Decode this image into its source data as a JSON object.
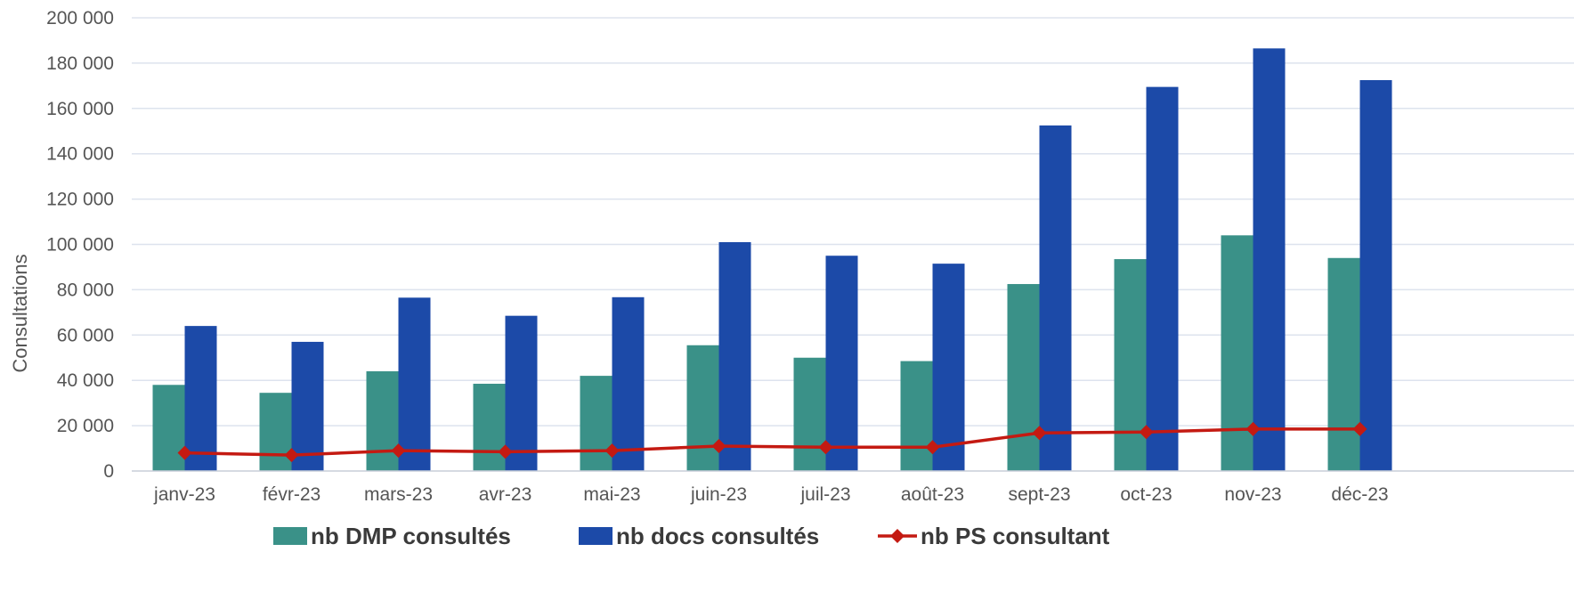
{
  "chart_data": {
    "type": "bar",
    "title": "",
    "xlabel": "",
    "ylabel": "Consultations",
    "ylim": [
      0,
      200000
    ],
    "yticks": [
      0,
      20000,
      40000,
      60000,
      80000,
      100000,
      120000,
      140000,
      160000,
      180000,
      200000
    ],
    "ytick_labels": [
      "0",
      "20 000",
      "40 000",
      "60 000",
      "80 000",
      "100 000",
      "120 000",
      "140 000",
      "160 000",
      "180 000",
      "200 000"
    ],
    "grid": true,
    "legend_position": "bottom",
    "categories": [
      "janv-23",
      "févr-23",
      "mars-23",
      "avr-23",
      "mai-23",
      "juin-23",
      "juil-23",
      "août-23",
      "sept-23",
      "oct-23",
      "nov-23",
      "déc-23"
    ],
    "series": [
      {
        "name": "nb DMP consultés",
        "type": "bar",
        "color": "#3a9188",
        "values": [
          38000,
          34500,
          44000,
          38500,
          42000,
          55500,
          50000,
          48500,
          82500,
          93500,
          104000,
          94000
        ]
      },
      {
        "name": "nb docs consultés",
        "type": "bar",
        "color": "#1c4aa8",
        "values": [
          64000,
          57000,
          76500,
          68500,
          76700,
          101000,
          95000,
          91500,
          152500,
          169500,
          186500,
          172500
        ]
      },
      {
        "name": "nb PS consultant",
        "type": "line",
        "color": "#c41a12",
        "values": [
          8000,
          7000,
          9000,
          8500,
          9000,
          11000,
          10500,
          10500,
          16800,
          17200,
          18500,
          18500
        ]
      }
    ]
  }
}
